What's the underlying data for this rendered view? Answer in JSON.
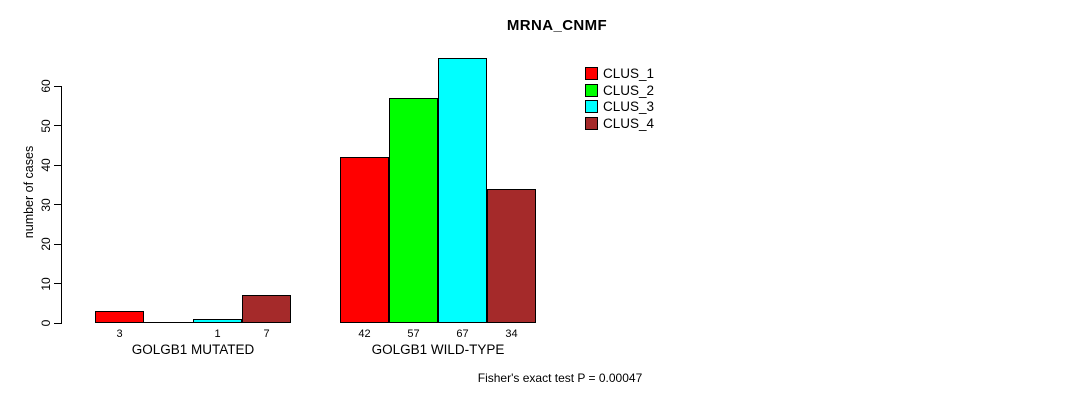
{
  "chart_data": {
    "type": "bar",
    "title": "MRNA_CNMF",
    "ylabel": "number of cases",
    "xlabel": "",
    "ylim": [
      0,
      60
    ],
    "yticks": [
      0,
      10,
      20,
      30,
      40,
      50,
      60
    ],
    "grid": false,
    "legend_position": "top-right",
    "categories": [
      "GOLGB1 MUTATED",
      "GOLGB1 WILD-TYPE"
    ],
    "series": [
      {
        "name": "CLUS_1",
        "color": "#FF0000",
        "values": [
          3,
          42
        ]
      },
      {
        "name": "CLUS_2",
        "color": "#00FF00",
        "values": [
          0,
          57
        ]
      },
      {
        "name": "CLUS_3",
        "color": "#00FFFF",
        "values": [
          1,
          67
        ]
      },
      {
        "name": "CLUS_4",
        "color": "#A52A2A",
        "values": [
          7,
          34
        ]
      }
    ],
    "bar_value_labels": [
      [
        "3",
        "",
        "1",
        "7"
      ],
      [
        "42",
        "57",
        "67",
        "34"
      ]
    ],
    "annotation": "Fisher's exact test P = 0.00047"
  }
}
